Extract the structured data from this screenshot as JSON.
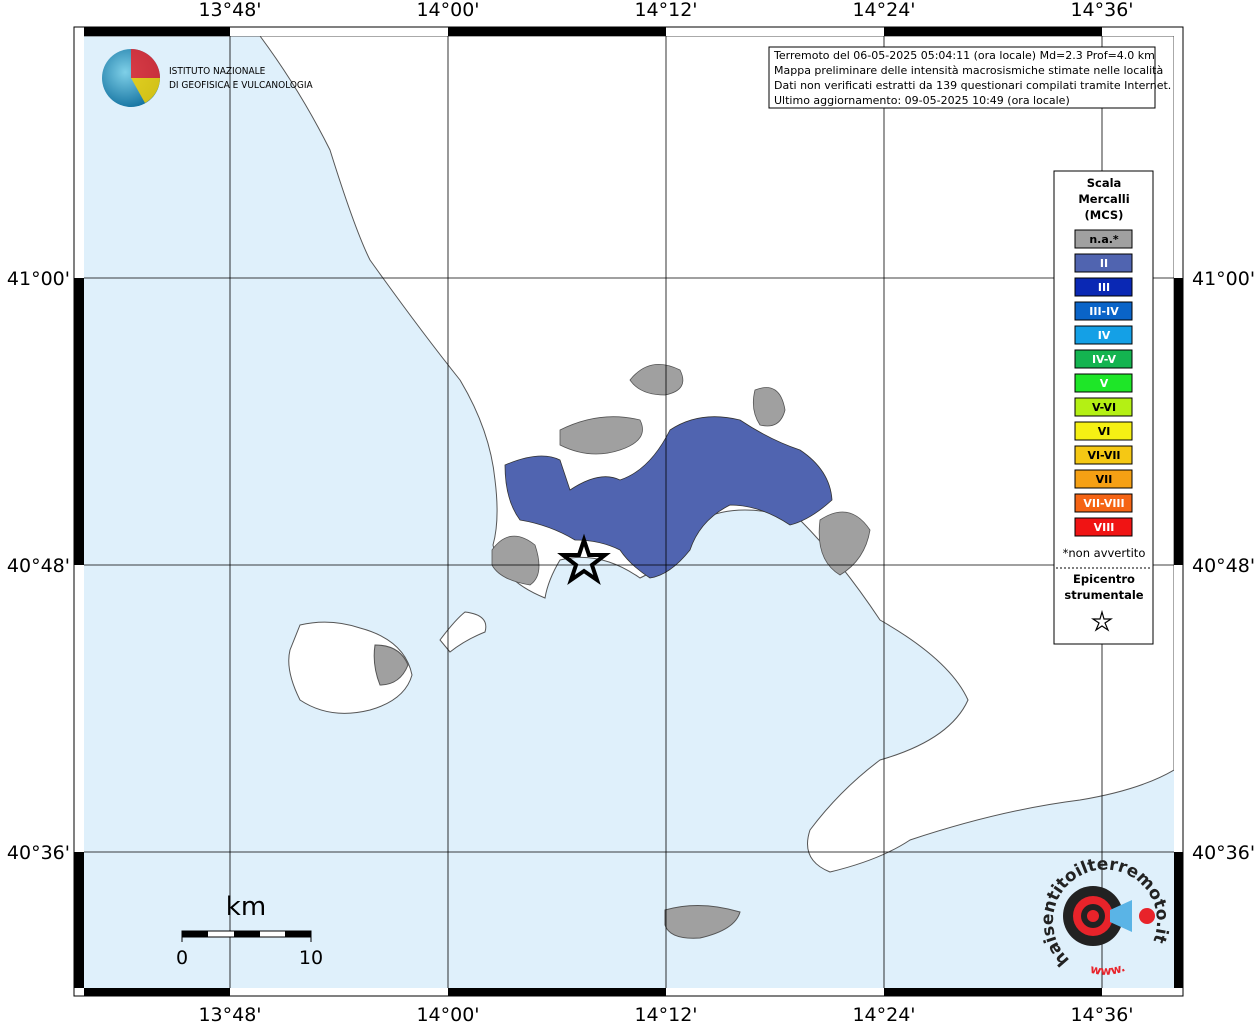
{
  "header": {
    "org_line1": "ISTITUTO NAZIONALE",
    "org_line2": "DI GEOFISICA E VULCANOLOGIA"
  },
  "info": {
    "lines": [
      "Terremoto del 06-05-2025 05:04:11 (ora locale) Md=2.3 Prof=4.0 km",
      "Mappa preliminare delle intensità macrosismiche stimate nelle località",
      "Dati non verificati estratti da 139 questionari compilati tramite Internet.",
      "Ultimo aggiornamento: 09-05-2025 10:49 (ora locale)"
    ]
  },
  "axes": {
    "longitudes": [
      "13°48'",
      "14°00'",
      "14°12'",
      "14°24'",
      "14°36'"
    ],
    "latitudes": [
      "41°00'",
      "40°48'",
      "40°36'"
    ]
  },
  "legend": {
    "title": [
      "Scala",
      "Mercalli",
      "(MCS)"
    ],
    "classes": [
      {
        "label": "n.a.*",
        "color": "#a0a0a0"
      },
      {
        "label": "II",
        "color": "#5064b0"
      },
      {
        "label": "III",
        "color": "#0a28b4"
      },
      {
        "label": "III-IV",
        "color": "#0a64c8"
      },
      {
        "label": "IV",
        "color": "#14a0e6"
      },
      {
        "label": "IV-V",
        "color": "#14b450"
      },
      {
        "label": "V",
        "color": "#1ee628"
      },
      {
        "label": "V-VI",
        "color": "#b4f014"
      },
      {
        "label": "VI",
        "color": "#f5f014"
      },
      {
        "label": "VI-VII",
        "color": "#f5c814"
      },
      {
        "label": "VII",
        "color": "#f5a014"
      },
      {
        "label": "VII-VIII",
        "color": "#f56414"
      },
      {
        "label": "VIII",
        "color": "#f01414"
      }
    ],
    "note": "*non avvertito",
    "epicenter": [
      "Epicentro",
      "strumentale"
    ]
  },
  "scale_bar": {
    "unit": "km",
    "labels": [
      "0",
      "10"
    ]
  },
  "logo": {
    "text": "haisentitoilterremoto.it",
    "www": "www."
  }
}
